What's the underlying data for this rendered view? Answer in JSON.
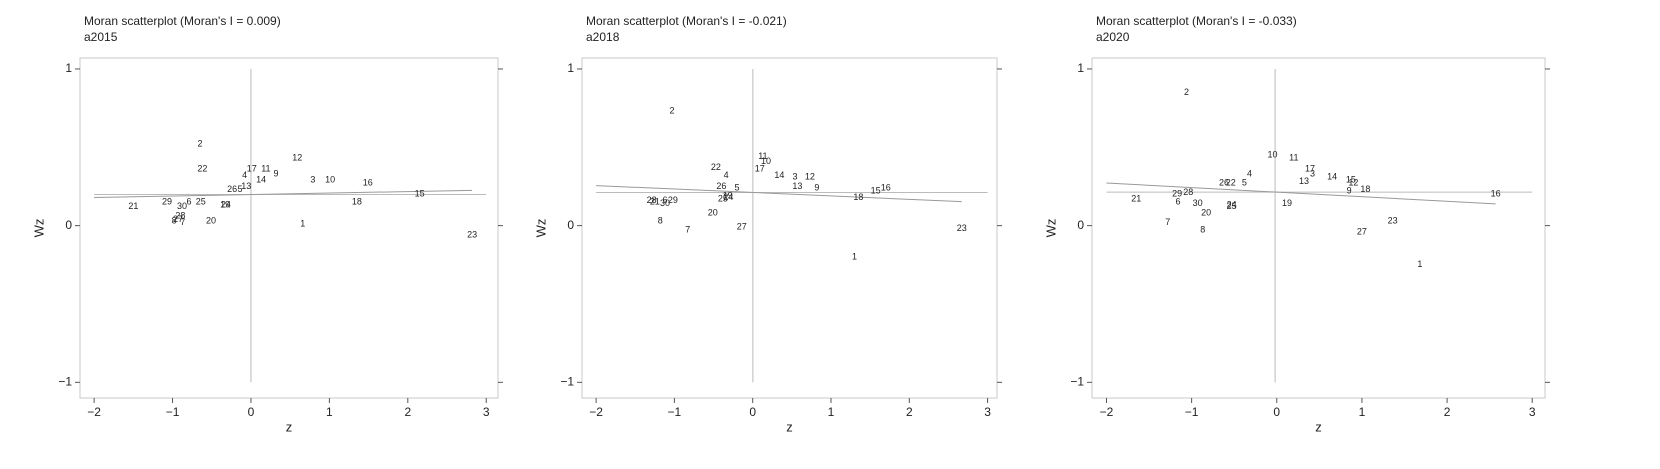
{
  "chart_data": [
    {
      "type": "scatter",
      "title": "Moran scatterplot (Moran's I = 0.009)",
      "subtitle": "a2015",
      "xlabel": "z",
      "ylabel": "Wz",
      "xlim": [
        -2.18,
        3.15
      ],
      "ylim": [
        -1.1,
        1.07
      ],
      "xticks": [
        {
          "value": -2,
          "label": "−2"
        },
        {
          "value": -1,
          "label": "−1"
        },
        0,
        1,
        2,
        3
      ],
      "yticks": [
        {
          "value": -1,
          "label": "−1"
        },
        0,
        1
      ],
      "point_labels": [
        "21",
        "29",
        "30",
        "6",
        "25",
        "28",
        "8",
        "27",
        "7",
        "20",
        "2",
        "22",
        "24",
        "19",
        "26",
        "5",
        "13",
        "4",
        "17",
        "11",
        "9",
        "14",
        "12",
        "3",
        "10",
        "16",
        "15",
        "18",
        "1",
        "23"
      ],
      "x": [
        -1.5,
        -1.07,
        -0.88,
        -0.79,
        -0.64,
        -0.9,
        -0.98,
        -0.93,
        -0.87,
        -0.51,
        -0.65,
        -0.62,
        -0.32,
        -0.33,
        -0.24,
        -0.14,
        -0.06,
        -0.08,
        0.01,
        0.19,
        0.32,
        0.13,
        0.59,
        0.79,
        1.01,
        1.49,
        2.15,
        1.35,
        0.66,
        2.82
      ],
      "values": [
        0.12,
        0.15,
        0.12,
        0.15,
        0.15,
        0.06,
        0.03,
        0.04,
        0.02,
        0.03,
        0.52,
        0.36,
        0.13,
        0.13,
        0.23,
        0.23,
        0.25,
        0.32,
        0.36,
        0.36,
        0.33,
        0.29,
        0.43,
        0.29,
        0.29,
        0.27,
        0.2,
        0.15,
        0.01,
        -0.06
      ]
    },
    {
      "type": "scatter",
      "title": "Moran scatterplot (Moran's I = -0.021)",
      "subtitle": "a2018",
      "xlabel": "z",
      "ylabel": "Wz",
      "xlim": [
        -2.18,
        3.12
      ],
      "ylim": [
        -1.1,
        1.07
      ],
      "xticks": [
        {
          "value": -2,
          "label": "−2"
        },
        {
          "value": -1,
          "label": "−1"
        },
        0,
        1,
        2,
        3
      ],
      "yticks": [
        {
          "value": -1,
          "label": "−1"
        },
        0,
        1
      ],
      "point_labels": [
        "2",
        "22",
        "4",
        "11",
        "10",
        "17",
        "14",
        "3",
        "12",
        "13",
        "9",
        "26",
        "5",
        "19",
        "24",
        "25",
        "28",
        "21",
        "6",
        "30",
        "29",
        "20",
        "8",
        "7",
        "27",
        "18",
        "15",
        "16",
        "1",
        "23"
      ],
      "x": [
        -1.03,
        -0.47,
        -0.34,
        0.13,
        0.17,
        0.09,
        0.34,
        0.54,
        0.73,
        0.57,
        0.82,
        -0.4,
        -0.2,
        -0.32,
        -0.31,
        -0.38,
        -1.29,
        -1.25,
        -1.12,
        -1.12,
        -1.02,
        -0.51,
        -1.18,
        -0.83,
        -0.14,
        1.35,
        1.57,
        1.7,
        1.3,
        2.67
      ],
      "values": [
        0.73,
        0.37,
        0.32,
        0.44,
        0.41,
        0.36,
        0.32,
        0.31,
        0.31,
        0.25,
        0.24,
        0.25,
        0.24,
        0.19,
        0.18,
        0.17,
        0.16,
        0.15,
        0.16,
        0.14,
        0.16,
        0.08,
        0.03,
        -0.03,
        -0.01,
        0.18,
        0.22,
        0.24,
        -0.2,
        -0.02
      ]
    },
    {
      "type": "scatter",
      "title": "Moran scatterplot (Moran's I = -0.033)",
      "subtitle": "a2020",
      "xlabel": "z",
      "ylabel": "Wz",
      "xlim": [
        -2.17,
        3.15
      ],
      "ylim": [
        -1.1,
        1.07
      ],
      "xticks": [
        {
          "value": -2,
          "label": "−2"
        },
        {
          "value": -1,
          "label": "−1"
        },
        0,
        1,
        2,
        3
      ],
      "yticks": [
        {
          "value": -1,
          "label": "−1"
        },
        0,
        1
      ],
      "point_labels": [
        "2",
        "10",
        "11",
        "17",
        "3",
        "14",
        "15",
        "12",
        "9",
        "18",
        "13",
        "4",
        "5",
        "26",
        "22",
        "21",
        "29",
        "28",
        "6",
        "30",
        "24",
        "25",
        "19",
        "20",
        "7",
        "8",
        "27",
        "23",
        "1",
        "16"
      ],
      "x": [
        -1.06,
        -0.05,
        0.2,
        0.39,
        0.42,
        0.65,
        0.87,
        0.9,
        0.85,
        1.04,
        0.32,
        -0.32,
        -0.38,
        -0.62,
        -0.54,
        -1.65,
        -1.17,
        -1.04,
        -1.16,
        -0.93,
        -0.53,
        -0.53,
        0.12,
        -0.83,
        -1.28,
        -0.87,
        1.0,
        1.36,
        1.68,
        2.57
      ],
      "values": [
        0.85,
        0.45,
        0.43,
        0.36,
        0.33,
        0.31,
        0.29,
        0.27,
        0.22,
        0.23,
        0.28,
        0.33,
        0.27,
        0.27,
        0.27,
        0.17,
        0.2,
        0.21,
        0.15,
        0.14,
        0.13,
        0.12,
        0.14,
        0.08,
        0.02,
        -0.03,
        -0.04,
        0.03,
        -0.25,
        0.2
      ]
    }
  ]
}
